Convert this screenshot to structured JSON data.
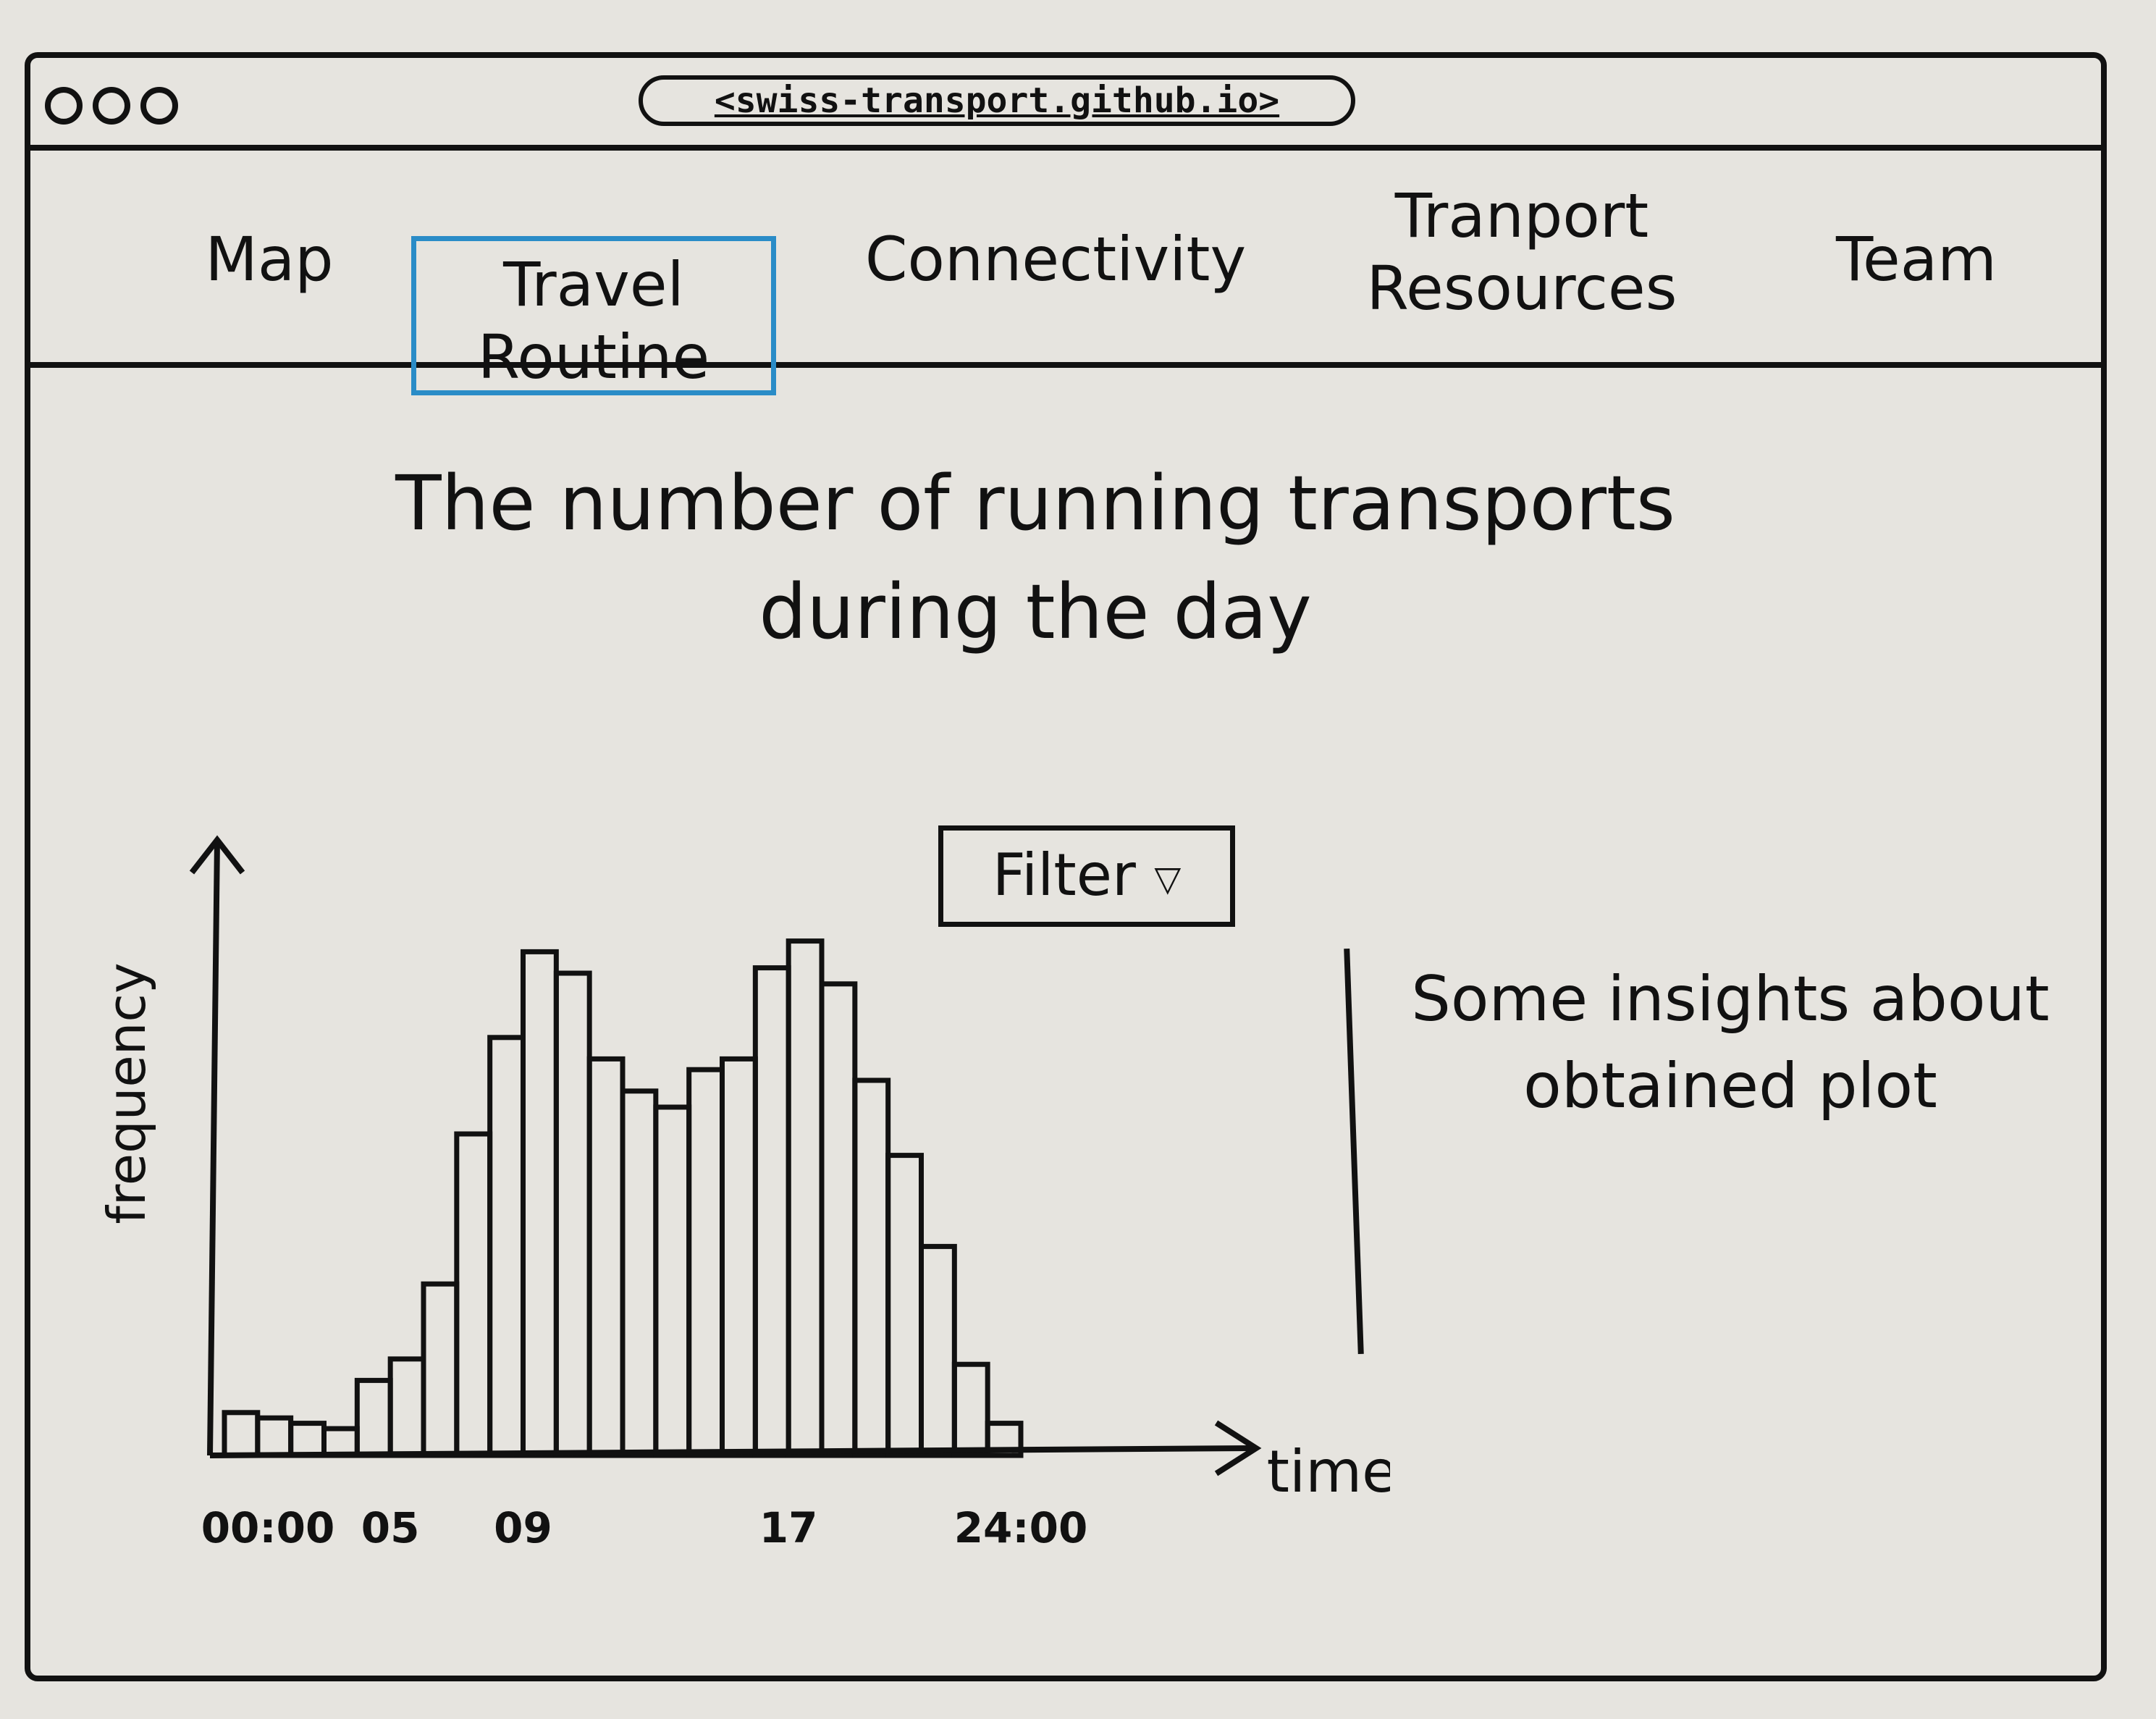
{
  "window": {
    "url": "<swiss-transport.github.io>"
  },
  "nav": {
    "tabs": [
      {
        "label": "Map"
      },
      {
        "label": "Travel Routine",
        "active": true
      },
      {
        "label": "Connectivity"
      },
      {
        "label": "Tranport Resources"
      },
      {
        "label": "Team"
      }
    ],
    "active_color": "#2a8cc7"
  },
  "main": {
    "headline": "The number of running transports during the day",
    "filter_label": "Filter",
    "insights": "Some insights about obtained plot"
  },
  "chart_data": {
    "type": "bar",
    "title": "",
    "xlabel": "time",
    "ylabel": "frequency",
    "x_tick_labels": [
      "00:00",
      "05",
      "09",
      "17",
      "24:00"
    ],
    "x_tick_positions": [
      0,
      5,
      9,
      17,
      24
    ],
    "xlim": [
      0,
      24
    ],
    "ylim": [
      0,
      10
    ],
    "bar_width": 1,
    "x": [
      0.5,
      1.5,
      2.5,
      3.5,
      4.5,
      5.5,
      6.5,
      7.5,
      8.5,
      9.5,
      10.5,
      11.5,
      12.5,
      13.5,
      14.5,
      15.5,
      16.5,
      17.5,
      18.5,
      19.5,
      20.5,
      21.5,
      22.5,
      23.5
    ],
    "values": [
      0.8,
      0.7,
      0.6,
      0.5,
      1.4,
      1.8,
      3.2,
      6.0,
      7.8,
      9.4,
      9.0,
      7.4,
      6.8,
      6.5,
      7.2,
      7.4,
      9.1,
      9.6,
      8.8,
      7.0,
      5.6,
      3.9,
      1.7,
      0.6
    ]
  }
}
